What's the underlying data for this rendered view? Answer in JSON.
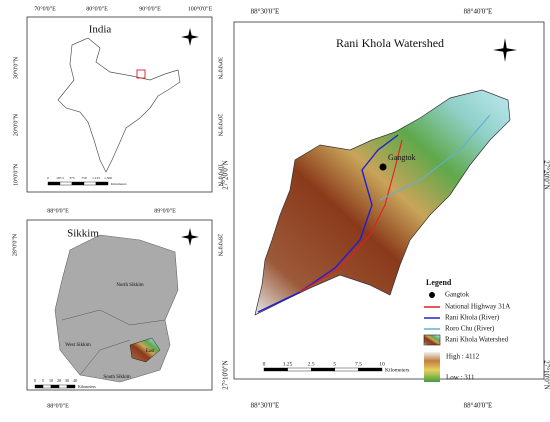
{
  "india_map": {
    "title": "India",
    "top_ticks": [
      "70°0'0\"E",
      "80°0'0\"E",
      "90°0'0\"E",
      "100°0'0\"E"
    ],
    "left_ticks": [
      "30°0'0\"N",
      "20°0'0\"N",
      "10°0'0\"N"
    ],
    "right_ticks": [
      "30°0'0\"N",
      "20°0'0\"N",
      "10°0'0\"N"
    ],
    "scale": [
      "0",
      "187.5",
      "375",
      "750",
      "1,125",
      "1,500"
    ],
    "scale_unit": "Kilometers"
  },
  "sikkim_map": {
    "title": "Sikkim",
    "top_ticks": [
      "88°0'0\"E",
      "89°0'0\"E"
    ],
    "bottom_ticks": [
      "88°0'0\"E"
    ],
    "left_ticks": [
      "28°0'0\"N"
    ],
    "right_ticks": [
      "28°0'0\"N"
    ],
    "regions": [
      "North Sikkim",
      "West Sikkim",
      "South Sikkim",
      "East"
    ],
    "scale": [
      "0",
      "5",
      "10",
      "20",
      "30",
      "40"
    ],
    "scale_unit": "Kilometers"
  },
  "watershed_map": {
    "title": "Rani Khola Watershed",
    "top_ticks": [
      "88°30'0\"E",
      "88°40'0\"E"
    ],
    "bottom_ticks": [
      "88°30'0\"E",
      "88°40'0\"E"
    ],
    "left_ticks": [
      "27°20'0\"N",
      "27°10'0\"N"
    ],
    "right_ticks": [
      "27°20'0\"N",
      "27°10'0\"N"
    ],
    "place": "Gangtok",
    "legend": {
      "title": "Legend",
      "items": [
        "Gangtok",
        "National Highway 31A",
        "Rani Khola (River)",
        "Roro Chu (River)",
        "Rani Khola Watershed"
      ],
      "high": "High : 4112",
      "low": "Low : 311"
    },
    "scale": [
      "0",
      "1.25",
      "2.5",
      "5",
      "7.5",
      "10"
    ],
    "scale_unit": "Kilometers"
  }
}
